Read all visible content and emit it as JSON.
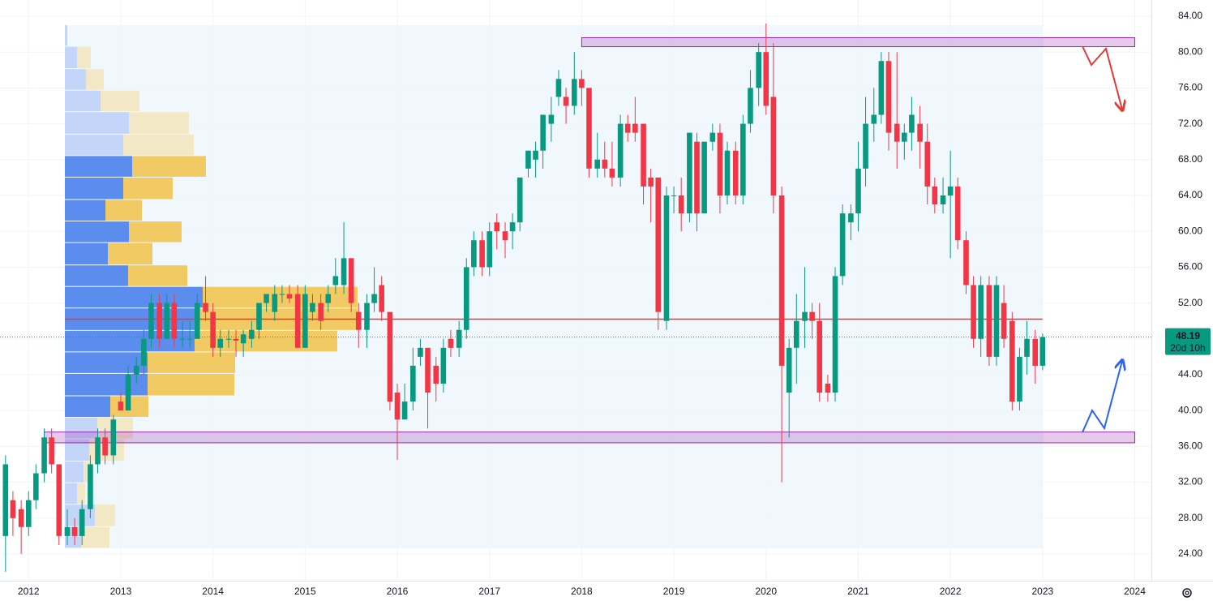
{
  "chart_data": {
    "type": "candlestick",
    "xlim": [
      2011.69,
      2024.18
    ],
    "xticks": [
      2012,
      2013,
      2014,
      2015,
      2016,
      2017,
      2018,
      2019,
      2020,
      2021,
      2022,
      2023,
      2024
    ],
    "ylim": [
      21.01,
      85.81
    ],
    "yticks": [
      {
        "value": 24,
        "label": "24.00"
      },
      {
        "value": 28,
        "label": "28.00"
      },
      {
        "value": 32,
        "label": "32.00"
      },
      {
        "value": 36,
        "label": "36.00"
      },
      {
        "value": 40,
        "label": "40.00"
      },
      {
        "value": 44,
        "label": "44.00"
      },
      {
        "value": 48,
        "label": "48.00"
      },
      {
        "value": 52,
        "label": "52.00"
      },
      {
        "value": 56,
        "label": "56.00"
      },
      {
        "value": 60,
        "label": "60.00"
      },
      {
        "value": 64,
        "label": "64.00"
      },
      {
        "value": 68,
        "label": "68.00"
      },
      {
        "value": 72,
        "label": "72.00"
      },
      {
        "value": 76,
        "label": "76.00"
      },
      {
        "value": 80,
        "label": "80.00"
      },
      {
        "value": 84,
        "label": "84.00"
      }
    ],
    "grid": true,
    "up_color": "#089981",
    "down_color": "#f23645",
    "x": [
      2011.75,
      2011.83,
      2011.92,
      2012,
      2012.08,
      2012.17,
      2012.25,
      2012.33,
      2012.42,
      2012.5,
      2012.58,
      2012.67,
      2012.75,
      2012.83,
      2012.92,
      2013,
      2013.08,
      2013.17,
      2013.25,
      2013.33,
      2013.42,
      2013.5,
      2013.58,
      2013.67,
      2013.75,
      2013.83,
      2013.92,
      2014,
      2014.08,
      2014.17,
      2014.25,
      2014.33,
      2014.42,
      2014.5,
      2014.58,
      2014.67,
      2014.75,
      2014.83,
      2014.92,
      2015,
      2015.08,
      2015.17,
      2015.25,
      2015.33,
      2015.42,
      2015.5,
      2015.58,
      2015.67,
      2015.75,
      2015.83,
      2015.92,
      2016,
      2016.08,
      2016.17,
      2016.25,
      2016.33,
      2016.42,
      2016.5,
      2016.58,
      2016.67,
      2016.75,
      2016.83,
      2016.92,
      2017,
      2017.08,
      2017.17,
      2017.25,
      2017.33,
      2017.42,
      2017.5,
      2017.58,
      2017.67,
      2017.75,
      2017.83,
      2017.92,
      2018,
      2018.08,
      2018.17,
      2018.25,
      2018.33,
      2018.42,
      2018.5,
      2018.58,
      2018.67,
      2018.75,
      2018.83,
      2018.92,
      2019,
      2019.08,
      2019.17,
      2019.25,
      2019.33,
      2019.42,
      2019.5,
      2019.58,
      2019.67,
      2019.75,
      2019.83,
      2019.92,
      2020,
      2020.08,
      2020.17,
      2020.25,
      2020.33,
      2020.42,
      2020.5,
      2020.58,
      2020.67,
      2020.75,
      2020.83,
      2020.92,
      2021,
      2021.08,
      2021.17,
      2021.25,
      2021.33,
      2021.42,
      2021.5,
      2021.58,
      2021.67,
      2021.75,
      2021.83,
      2021.92,
      2022,
      2022.08,
      2022.17,
      2022.25,
      2022.33,
      2022.42,
      2022.5,
      2022.58,
      2022.67,
      2022.75,
      2022.83,
      2022.92,
      2023
    ],
    "open": [
      26,
      30,
      29,
      27,
      30,
      33,
      37,
      34,
      26,
      27,
      26,
      29,
      34,
      37,
      35,
      41,
      40,
      44,
      45,
      48,
      52,
      48,
      52,
      48,
      48,
      48,
      52,
      51,
      47,
      48,
      48,
      47.5,
      48,
      49,
      52,
      51,
      53,
      53,
      53,
      47,
      51,
      52,
      52,
      54,
      54,
      57,
      51,
      49,
      52,
      54,
      51,
      42,
      39,
      41,
      46,
      47,
      45,
      43,
      48,
      47,
      49,
      56,
      59,
      56,
      61,
      60,
      60,
      61,
      67,
      68,
      69,
      72,
      75,
      75,
      74,
      77,
      76,
      67,
      68,
      67,
      66,
      72,
      72,
      72,
      66,
      66,
      50,
      64,
      64,
      62,
      70,
      62,
      70,
      71,
      64,
      69,
      64,
      72,
      76,
      80,
      75,
      64,
      42,
      47,
      50,
      51,
      50,
      43,
      42,
      55,
      61,
      62,
      67,
      72,
      73,
      79,
      72,
      70,
      71,
      72,
      70,
      65,
      63,
      64,
      65,
      59,
      54,
      48,
      54,
      46,
      52,
      50,
      41,
      46,
      48,
      45
    ],
    "close": [
      34,
      28,
      27,
      30,
      33,
      37,
      34,
      26,
      27,
      26,
      29,
      34,
      37,
      35,
      39,
      40,
      44,
      45,
      48,
      52,
      48,
      52,
      48,
      48,
      48,
      52,
      51,
      47,
      48,
      48,
      47.8,
      48.5,
      49,
      52,
      53,
      53,
      53,
      52.5,
      47,
      53,
      52,
      50,
      53,
      55,
      57,
      52,
      49,
      52,
      53,
      51,
      41,
      39,
      41,
      45,
      47,
      42,
      43,
      47,
      47,
      49,
      56,
      59,
      56,
      60,
      60,
      59,
      61,
      66,
      69,
      69,
      73,
      73,
      77,
      74,
      77,
      76,
      67,
      68,
      67,
      66,
      72,
      71,
      71,
      65,
      65,
      51,
      64,
      64,
      62,
      71,
      62,
      70,
      71,
      64,
      69,
      64,
      72,
      76,
      80,
      74,
      64,
      45,
      47,
      50,
      51,
      50,
      42,
      42,
      55,
      62,
      62,
      67,
      72,
      73,
      79,
      71,
      70,
      71,
      73,
      70,
      65,
      63,
      64,
      65,
      59,
      54,
      48,
      54,
      46,
      54,
      48,
      41,
      46,
      48,
      45,
      48.19
    ],
    "high": [
      35,
      31,
      30,
      31,
      34,
      38,
      38,
      34,
      29,
      28,
      30,
      35,
      38,
      38,
      39.5,
      42,
      45,
      46,
      49,
      53,
      53,
      53,
      53,
      50,
      50,
      53,
      55,
      52,
      49,
      49,
      49,
      49,
      50,
      52,
      53,
      54,
      54,
      54,
      54,
      54,
      53,
      53,
      54,
      57,
      61,
      57,
      52,
      53,
      56,
      55,
      51,
      43,
      43,
      47,
      48,
      47,
      46,
      48,
      49,
      50,
      57,
      60,
      60,
      61,
      62,
      61,
      62,
      66,
      69,
      70,
      73,
      75,
      78,
      76,
      80,
      78,
      76,
      71,
      70,
      70,
      73,
      73,
      75,
      72,
      67,
      66,
      65,
      65,
      66,
      71,
      71,
      70,
      72,
      72,
      70,
      70,
      73,
      78,
      81,
      83.2,
      81,
      65,
      48,
      53,
      56,
      52,
      52,
      44,
      56,
      63,
      63,
      70,
      75,
      76,
      80,
      80,
      80,
      72,
      75,
      74,
      72,
      66,
      66,
      69,
      66,
      60,
      55,
      55,
      55,
      55,
      54,
      51,
      47,
      50,
      49,
      48.6
    ],
    "low": [
      22,
      26,
      24,
      26,
      29,
      32,
      33,
      25,
      25,
      25,
      25,
      28,
      33,
      34,
      34,
      40,
      40,
      43,
      44,
      47,
      47,
      48,
      47,
      47,
      47,
      48,
      50,
      46,
      46,
      47,
      46,
      46,
      47,
      48,
      51,
      50,
      52,
      52,
      47,
      47,
      50,
      49,
      51,
      53,
      53,
      51,
      47,
      47,
      51,
      50,
      40,
      34.5,
      39,
      40,
      45,
      38,
      41,
      42,
      46,
      46,
      48,
      55,
      55,
      55,
      58,
      57,
      58,
      60,
      66,
      66,
      67,
      70,
      74,
      72,
      73,
      74,
      66,
      66,
      66,
      65,
      65,
      70,
      70,
      63,
      61,
      49,
      49,
      62,
      60,
      61,
      60,
      62,
      69,
      62,
      63,
      63,
      63,
      71,
      74,
      73,
      62,
      32,
      37,
      43,
      47,
      48,
      41,
      41,
      41,
      54,
      59,
      60,
      65,
      70,
      72,
      69,
      67,
      68,
      69,
      67,
      63,
      62,
      62,
      57,
      58,
      53,
      47,
      46,
      45,
      45,
      47,
      40,
      40,
      44,
      43,
      44.5
    ],
    "volume_profile": {
      "bins": [
        24.6,
        27.0,
        29.5,
        31.9,
        34.3,
        36.8,
        39.2,
        41.6,
        44.1,
        46.5,
        48.9,
        51.4,
        53.8,
        56.2,
        58.7,
        61.1,
        63.5,
        66.0,
        68.4,
        70.8,
        73.3,
        75.7,
        78.1,
        80.6,
        83.0
      ],
      "up": [
        20,
        37,
        15,
        23,
        30,
        40,
        56,
        102,
        102,
        160,
        160,
        170,
        78,
        53,
        79,
        50,
        72,
        83,
        72,
        79,
        44,
        26,
        15,
        3
      ],
      "down": [
        35,
        25,
        10,
        12,
        43,
        44,
        47,
        107,
        108,
        176,
        201,
        191,
        73,
        55,
        65,
        45,
        61,
        91,
        87,
        74,
        48,
        22,
        17,
        0
      ],
      "value_area": [
        39.2,
        68.4
      ],
      "poc": 50.2,
      "up_color": "#5b8def",
      "down_color": "#f2ca63",
      "up_color_outside": "#c3d5f8",
      "down_color_outside": "#f3e8c6",
      "poc_color": "#e53935"
    },
    "zones": [
      {
        "from": 80.6,
        "to": 81.6,
        "start": 2018.0,
        "end": 2024.0
      },
      {
        "from": 36.4,
        "to": 37.6,
        "start": 2012.17,
        "end": 2024.0
      }
    ],
    "zone_color": "#9c27b0",
    "last_price": {
      "value": 48.19,
      "countdown": "20d 10h"
    }
  }
}
